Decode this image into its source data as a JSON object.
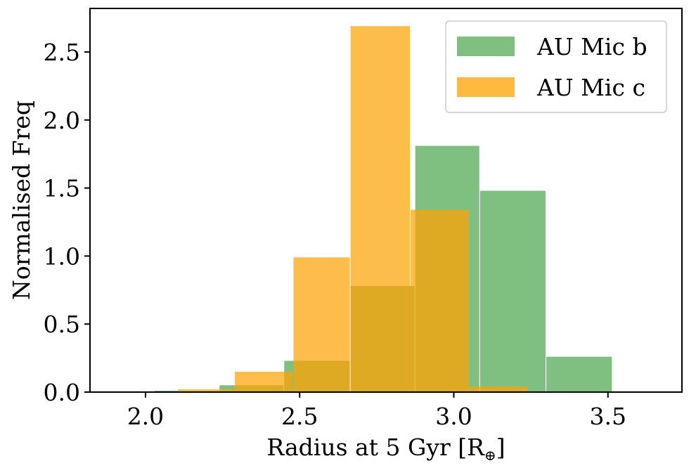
{
  "chart_data": {
    "type": "histogram",
    "xlabel": "Radius at 5 Gyr [R",
    "xlabel_subscript": "⊕",
    "xlabel_suffix": "]",
    "ylabel": "Normalised Freq",
    "xlim": [
      1.82,
      3.74
    ],
    "ylim": [
      0,
      2.82
    ],
    "xticks": [
      2.0,
      2.5,
      3.0,
      3.5
    ],
    "xtick_labels": [
      "2.0",
      "2.5",
      "3.0",
      "3.5"
    ],
    "yticks": [
      0.0,
      0.5,
      1.0,
      1.5,
      2.0,
      2.5
    ],
    "ytick_labels": [
      "0.0",
      "0.5",
      "1.0",
      "1.5",
      "2.0",
      "2.5"
    ],
    "legend_position": "top-right",
    "series": [
      {
        "name": "AU Mic b",
        "color": "#7fc080",
        "bins": [
          {
            "x0": 1.815,
            "x1": 2.03,
            "y": 0.0
          },
          {
            "x0": 2.03,
            "x1": 2.24,
            "y": 0.01
          },
          {
            "x0": 2.24,
            "x1": 2.45,
            "y": 0.05
          },
          {
            "x0": 2.45,
            "x1": 2.665,
            "y": 0.23
          },
          {
            "x0": 2.665,
            "x1": 2.875,
            "y": 0.78
          },
          {
            "x0": 2.875,
            "x1": 3.085,
            "y": 1.81
          },
          {
            "x0": 3.085,
            "x1": 3.3,
            "y": 1.48
          },
          {
            "x0": 3.3,
            "x1": 3.515,
            "y": 0.26
          },
          {
            "x0": 3.515,
            "x1": 3.725,
            "y": 0.0
          }
        ]
      },
      {
        "name": "AU Mic c",
        "color": "#fdb940",
        "bins": [
          {
            "x0": 1.92,
            "x1": 2.105,
            "y": 0.0
          },
          {
            "x0": 2.105,
            "x1": 2.29,
            "y": 0.02
          },
          {
            "x0": 2.29,
            "x1": 2.48,
            "y": 0.15
          },
          {
            "x0": 2.48,
            "x1": 2.665,
            "y": 0.99
          },
          {
            "x0": 2.665,
            "x1": 2.86,
            "y": 2.69
          },
          {
            "x0": 2.86,
            "x1": 3.05,
            "y": 1.34
          },
          {
            "x0": 3.05,
            "x1": 3.24,
            "y": 0.04
          }
        ]
      }
    ]
  }
}
